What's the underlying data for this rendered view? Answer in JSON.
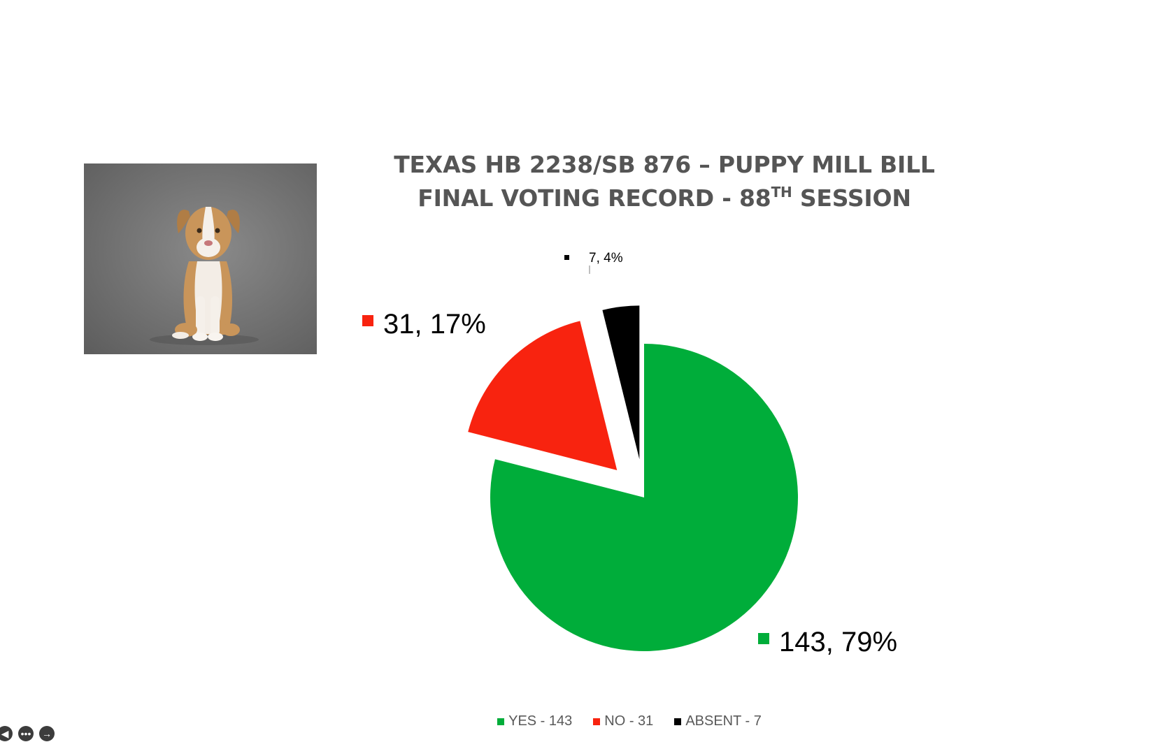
{
  "slide": {
    "title_line1": "TEXAS HB 2238/SB 876 – PUPPY MILL BILL",
    "title_line2_prefix": "FINAL VOTING RECORD  -  88",
    "title_line2_sup": "TH",
    "title_line2_suffix": " SESSION"
  },
  "chart_data": {
    "type": "pie",
    "title": "TEXAS HB 2238/SB 876 – PUPPY MILL BILL FINAL VOTING RECORD - 88TH SESSION",
    "slices": [
      {
        "name": "YES - 143",
        "value": 143,
        "percent": 79,
        "color": "#00AD3A",
        "data_label": "143, 79%",
        "exploded": false
      },
      {
        "name": "NO - 31",
        "value": 31,
        "percent": 17,
        "color": "#F8230F",
        "data_label": "31, 17%",
        "exploded": true
      },
      {
        "name": "ABSENT - 7",
        "value": 7,
        "percent": 4,
        "color": "#000000",
        "data_label": "7, 4%",
        "exploded": true
      }
    ],
    "legend_position": "bottom"
  },
  "photo": {
    "icon": "puppy-photo"
  },
  "player": {
    "prev_icon": "previous-icon",
    "menu_icon": "more-icon",
    "next_icon": "next-icon",
    "prev_glyph": "◀",
    "menu_glyph": "•••",
    "next_glyph": "→"
  }
}
